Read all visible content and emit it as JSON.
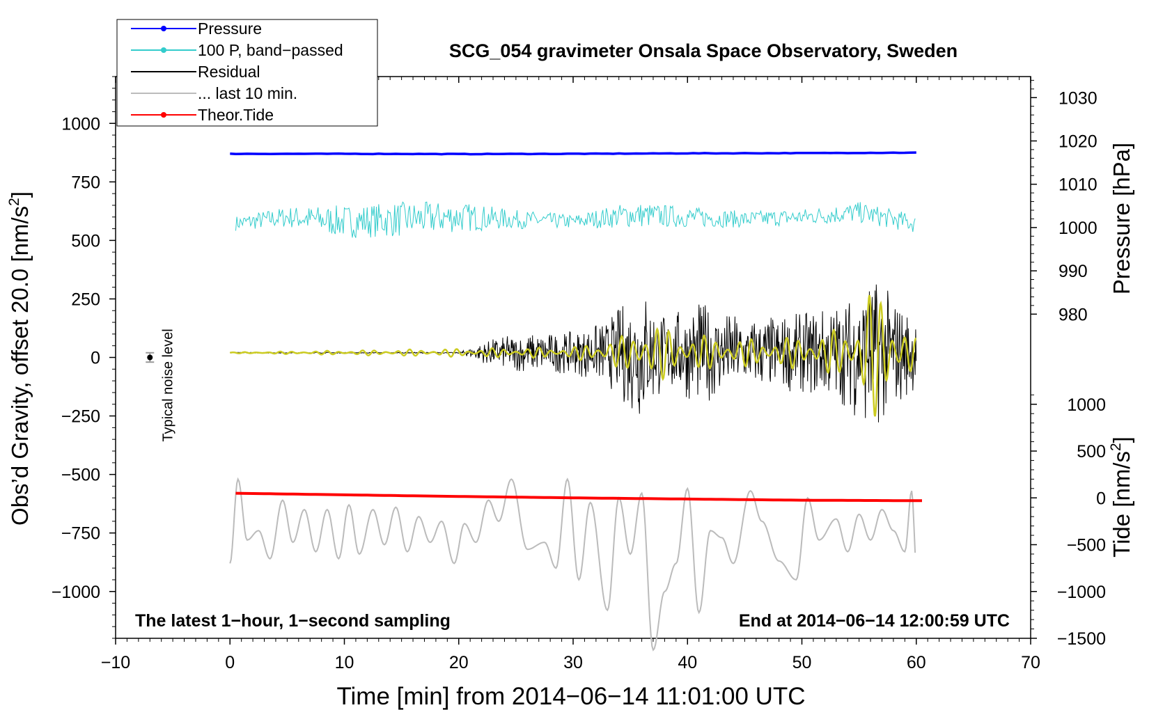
{
  "chart_data": {
    "type": "line",
    "title": "SCG_054 gravimeter Onsala Space Observatory, Sweden",
    "xlabel": "Time [min] from 2014−06−14 11:01:00 UTC",
    "ylabel": "Obs’d Gravity, offset 20.0 [nm/s",
    "ylabel_sup": "2",
    "ylabel_tail": "]",
    "y2_label": "Pressure [hPa]",
    "y3_label": "Tide [nm/s",
    "y3_label_sup": "2",
    "y3_label_tail": "]",
    "xlim": [
      -10,
      70
    ],
    "ylim": [
      -1200,
      1200
    ],
    "x_ticks": [
      "−10",
      "0",
      "10",
      "20",
      "30",
      "40",
      "50",
      "60",
      "70"
    ],
    "x_tick_values": [
      -10,
      0,
      10,
      20,
      30,
      40,
      50,
      60,
      70
    ],
    "y_ticks": [
      "1000",
      "750",
      "500",
      "250",
      "0",
      "−250",
      "−500",
      "−750",
      "−1000"
    ],
    "y_tick_values": [
      1000,
      750,
      500,
      250,
      0,
      -250,
      -500,
      -750,
      -1000
    ],
    "pressure_axis": {
      "ticks": [
        "1030",
        "1020",
        "1010",
        "1000",
        "990",
        "980"
      ],
      "values": [
        1030,
        1020,
        1010,
        1000,
        990,
        980
      ],
      "at_gravity": [
        1110,
        925,
        740,
        555,
        370,
        185
      ]
    },
    "tide_axis": {
      "ticks": [
        "1000",
        "500",
        "0",
        "−500",
        "−1000",
        "−1500"
      ],
      "values": [
        1000,
        500,
        0,
        -500,
        -1000,
        -1500
      ],
      "at_gravity": [
        -200,
        -400,
        -600,
        -800,
        -1000,
        -1200
      ]
    },
    "noise_marker": {
      "x": -7,
      "y": 0,
      "err": 20,
      "label": "Typical noise level"
    },
    "annotations": {
      "bottom_left": "The latest 1−hour, 1−second sampling",
      "bottom_right": "End at 2014−06−14 12:00:59 UTC"
    },
    "legend": {
      "position": "top-left",
      "entries": [
        {
          "label": "Pressure",
          "color": "#0000ff",
          "marker": true
        },
        {
          "label": "100 P, band−passed",
          "color": "#33cccc",
          "marker": true
        },
        {
          "label": "Residual",
          "color": "#000000",
          "marker": false
        },
        {
          "label": "... last 10 min.",
          "color": "#bbbbbb",
          "marker": false
        },
        {
          "label": "Theor.Tide",
          "color": "#ff0000",
          "marker": true
        }
      ]
    },
    "series": [
      {
        "name": "Pressure",
        "color": "#0000ff",
        "x": [
          0,
          10,
          20,
          30,
          40,
          50,
          60
        ],
        "y": [
          870,
          870,
          869,
          870,
          872,
          873,
          875
        ]
      },
      {
        "name": "100 P, band−passed",
        "color": "#33cccc",
        "x": [
          0,
          5,
          10,
          15,
          20,
          25,
          30,
          35,
          40,
          45,
          50,
          55,
          60
        ],
        "y": [
          570,
          600,
          580,
          590,
          600,
          590,
          580,
          610,
          600,
          590,
          600,
          620,
          570
        ],
        "amplitude": [
          30,
          45,
          70,
          75,
          65,
          40,
          30,
          55,
          45,
          35,
          35,
          45,
          40
        ]
      },
      {
        "name": "Residual",
        "color": "#000000",
        "x": [
          0,
          10,
          20,
          23,
          25,
          30,
          33,
          35,
          36,
          38,
          41,
          45,
          50,
          54,
          55,
          56,
          57,
          58,
          60
        ],
        "y": [
          20,
          20,
          20,
          20,
          20,
          20,
          20,
          20,
          20,
          20,
          20,
          20,
          20,
          20,
          20,
          20,
          20,
          20,
          20
        ],
        "amplitude": [
          2,
          2,
          2,
          60,
          80,
          90,
          140,
          250,
          300,
          160,
          220,
          150,
          170,
          230,
          300,
          330,
          300,
          250,
          150
        ]
      },
      {
        "name": "Residual (yellow, low-pass)",
        "color": "#cccc22",
        "x": [
          0,
          23,
          30,
          35,
          36,
          40,
          45,
          50,
          54,
          56,
          58,
          60
        ],
        "y": [
          20,
          20,
          20,
          20,
          20,
          20,
          20,
          20,
          20,
          20,
          20,
          20
        ],
        "amplitude": [
          2,
          20,
          25,
          80,
          140,
          80,
          60,
          70,
          110,
          290,
          200,
          60
        ]
      },
      {
        "name": "... last 10 min.",
        "color": "#bbbbbb",
        "x": [
          0,
          0.7,
          1.5,
          2.5,
          3.5,
          4.6,
          5.5,
          6.5,
          7.5,
          8.5,
          9.5,
          10.4,
          11.3,
          12.5,
          13.5,
          14.5,
          15.5,
          16.5,
          17.5,
          18.5,
          19.6,
          20.5,
          21.5,
          22.6,
          23.5,
          24.6,
          26,
          27.5,
          28.5,
          29.5,
          30.5,
          31.5,
          33,
          34,
          35,
          36,
          37,
          38,
          39,
          40,
          41,
          42,
          43,
          44,
          45.5,
          46.5,
          48,
          49.5,
          50.5,
          51.5,
          53,
          54,
          55,
          56,
          57,
          58,
          59,
          59.6,
          60
        ],
        "y": [
          -880,
          -520,
          -780,
          -740,
          -860,
          -610,
          -790,
          -650,
          -830,
          -650,
          -860,
          -630,
          -840,
          -650,
          -800,
          -640,
          -830,
          -680,
          -790,
          -700,
          -880,
          -710,
          -790,
          -610,
          -700,
          -520,
          -820,
          -790,
          -900,
          -520,
          -950,
          -620,
          -1080,
          -600,
          -840,
          -580,
          -1250,
          -1000,
          -880,
          -560,
          -1090,
          -740,
          -770,
          -880,
          -570,
          -700,
          -870,
          -950,
          -600,
          -780,
          -690,
          -830,
          -670,
          -780,
          -650,
          -740,
          -830,
          -570,
          -880
        ]
      },
      {
        "name": "Theor.Tide",
        "color": "#ff0000",
        "x": [
          0,
          10,
          20,
          30,
          40,
          50,
          60
        ],
        "y": [
          -580,
          -587,
          -594,
          -600,
          -605,
          -610,
          -612
        ]
      }
    ]
  }
}
